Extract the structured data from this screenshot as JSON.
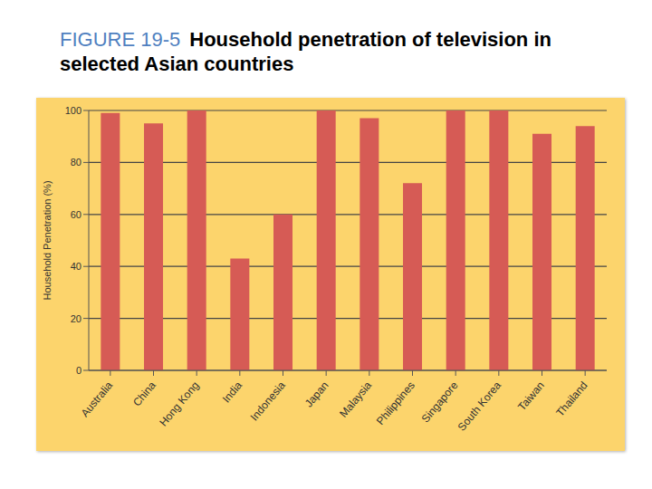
{
  "chart_data": {
    "type": "bar",
    "annotation": "FIGURE 19-5",
    "title": "Household penetration of television in selected Asian countries",
    "y_label": "Household Penetration (%)",
    "categories": [
      "Australia",
      "China",
      "Hong Kong",
      "India",
      "Indonesia",
      "Japan",
      "Malaysia",
      "Philippines",
      "Singapore",
      "South Korea",
      "Taiwan",
      "Thailand"
    ],
    "values": [
      99,
      95,
      100,
      43,
      60,
      100,
      97,
      72,
      100,
      100,
      91,
      94
    ],
    "color": "#d65b55",
    "ylim": [
      0,
      100
    ],
    "yticks": [
      0,
      20,
      40,
      60,
      80,
      100
    ],
    "grid": true
  }
}
